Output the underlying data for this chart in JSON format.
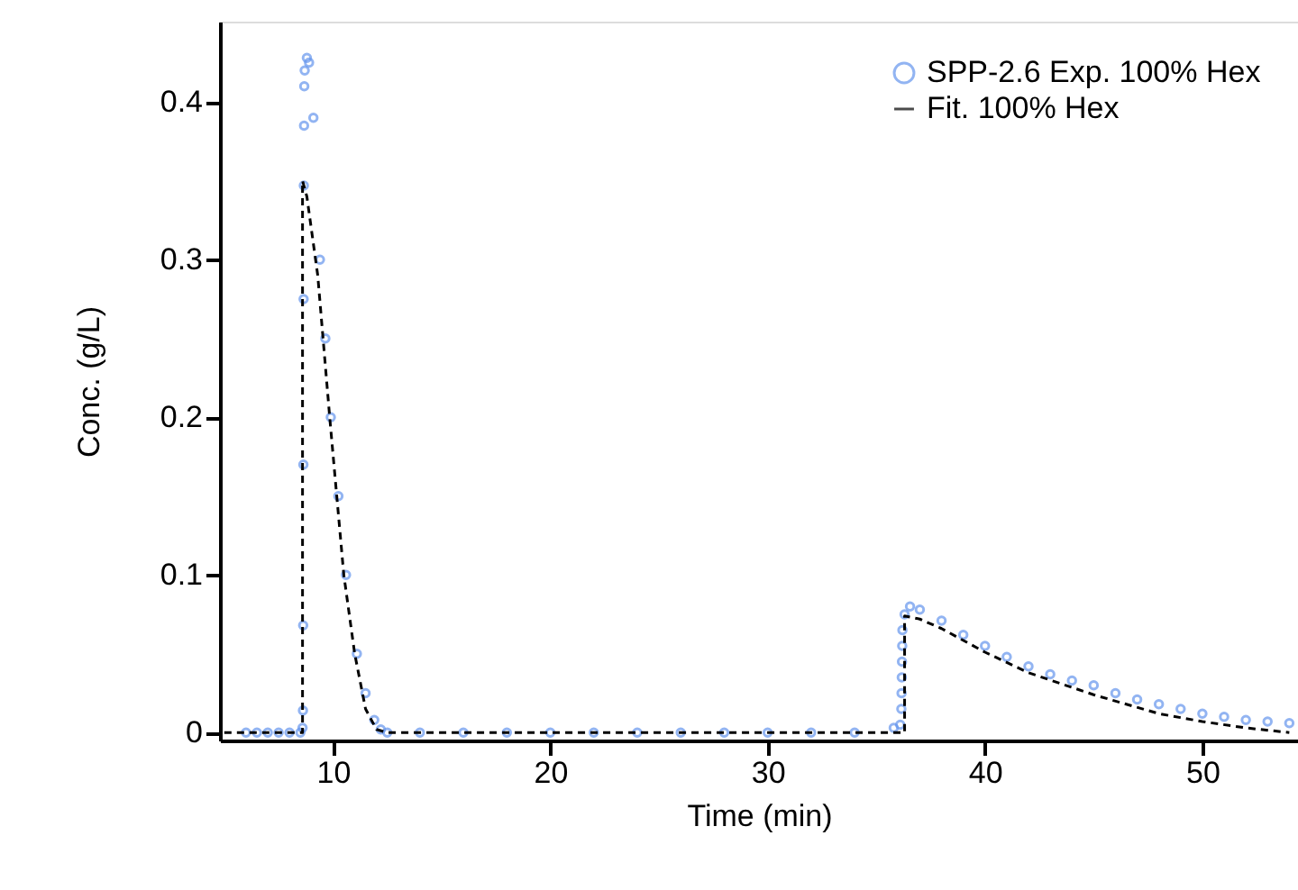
{
  "chart_data": {
    "type": "scatter",
    "xlabel": "Time (min)",
    "ylabel": "Conc. (g/L)",
    "xlim": [
      4.8,
      54.4
    ],
    "ylim": [
      -0.005,
      0.451
    ],
    "xticks": [
      10,
      20,
      30,
      40,
      50
    ],
    "yticks": [
      0,
      0.1,
      0.2,
      0.3,
      0.4
    ],
    "grid": false,
    "legend": "top right",
    "series": [
      {
        "name": "SPP-2.6 Exp. 100% Hex",
        "marker": "circle",
        "color": "#6495ed",
        "x": [
          6,
          6.5,
          7,
          7.5,
          8,
          8.5,
          8.6,
          8.62,
          8.63,
          8.64,
          8.65,
          8.66,
          8.67,
          8.68,
          8.7,
          8.8,
          8.9,
          9.1,
          9.4,
          9.65,
          9.9,
          10.25,
          10.6,
          11.1,
          11.5,
          11.9,
          12.2,
          12.5,
          14,
          16,
          18,
          20,
          22,
          24,
          26,
          28,
          30,
          32,
          34,
          35.8,
          36.1,
          36.15,
          36.16,
          36.17,
          36.18,
          36.19,
          36.2,
          36.3,
          36.55,
          37,
          38,
          39,
          40,
          41,
          42,
          43,
          44,
          45,
          46,
          47,
          48,
          49,
          50,
          51,
          52,
          53,
          54
        ],
        "values": [
          0,
          0,
          0,
          0,
          0,
          0,
          0.003,
          0.014,
          0.068,
          0.17,
          0.275,
          0.347,
          0.385,
          0.41,
          0.42,
          0.428,
          0.425,
          0.39,
          0.3,
          0.25,
          0.2,
          0.15,
          0.1,
          0.05,
          0.025,
          0.008,
          0.002,
          0,
          0,
          0,
          0,
          0,
          0,
          0,
          0,
          0,
          0,
          0,
          0,
          0.003,
          0.005,
          0.015,
          0.025,
          0.035,
          0.045,
          0.055,
          0.065,
          0.075,
          0.08,
          0.078,
          0.071,
          0.062,
          0.055,
          0.048,
          0.042,
          0.037,
          0.033,
          0.03,
          0.025,
          0.021,
          0.018,
          0.015,
          0.012,
          0.01,
          0.008,
          0.007,
          0.006
        ]
      },
      {
        "name": "Fit. 100% Hex",
        "type": "line",
        "line_style": "dashed",
        "marker": "none",
        "color": "#000000",
        "x": [
          5,
          8.6,
          8.6,
          8.8,
          9.3,
          9.85,
          10.5,
          11,
          11.5,
          12,
          12.5,
          36.3,
          36.3,
          37,
          38,
          40,
          42,
          45,
          48,
          50,
          52,
          54
        ],
        "values": [
          0,
          0,
          0.35,
          0.34,
          0.29,
          0.2,
          0.1,
          0.05,
          0.015,
          0.002,
          0,
          0,
          0.074,
          0.072,
          0.066,
          0.051,
          0.038,
          0.024,
          0.012,
          0.007,
          0.003,
          0
        ]
      }
    ]
  }
}
